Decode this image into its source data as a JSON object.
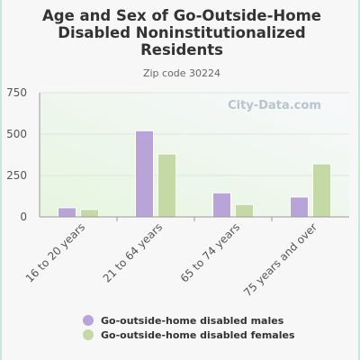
{
  "chart_data": {
    "type": "bar",
    "title": "Age and Sex of Go-Outside-Home Disabled Noninstitutionalized Residents",
    "title_lines": [
      "Age and Sex of Go-Outside-Home",
      "Disabled Noninstitutionalized",
      "Residents"
    ],
    "subtitle": "Zip code 30224",
    "categories": [
      "16 to 20 years",
      "21 to 64 years",
      "65 to 74 years",
      "75 years and over"
    ],
    "series": [
      {
        "name": "Go-outside-home disabled males",
        "color": "#b8a4d9",
        "values": [
          55,
          520,
          145,
          120
        ]
      },
      {
        "name": "Go-outside-home disabled females",
        "color": "#c4d9a6",
        "values": [
          45,
          380,
          75,
          320
        ]
      }
    ],
    "ylim": [
      0,
      750
    ],
    "yticks": [
      0,
      250,
      500,
      750
    ],
    "grid": true,
    "legend": "bottom",
    "watermark": "City-Data.com"
  }
}
